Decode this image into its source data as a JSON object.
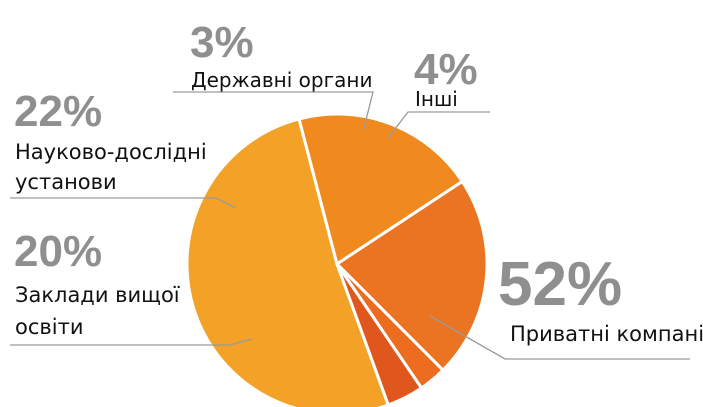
{
  "chart_data": {
    "type": "pie",
    "slices": [
      {
        "label": "Приватні компанії",
        "value": 52,
        "value_label": "52%",
        "color": "#f3a127"
      },
      {
        "label": "Заклади вищої освіти",
        "value": 20,
        "value_label": "20%",
        "color": "#f08a1f"
      },
      {
        "label": "Науково-дослідні установи",
        "value": 22,
        "value_label": "22%",
        "color": "#ea7422"
      },
      {
        "label": "Державні органи",
        "value": 3,
        "value_label": "3%",
        "color": "#ec6c20"
      },
      {
        "label": "Інші",
        "value": 4,
        "value_label": "4%",
        "color": "#e0571e"
      }
    ],
    "labels": {
      "companies": "Приватні компанії",
      "universities_line1": "Заклади вищої",
      "universities_line2": "освіти",
      "research_line1": "Науково-дослідні",
      "research_line2": "установи",
      "government": "Державні органи",
      "other": "Інші"
    },
    "legend": "none",
    "grid": false
  }
}
